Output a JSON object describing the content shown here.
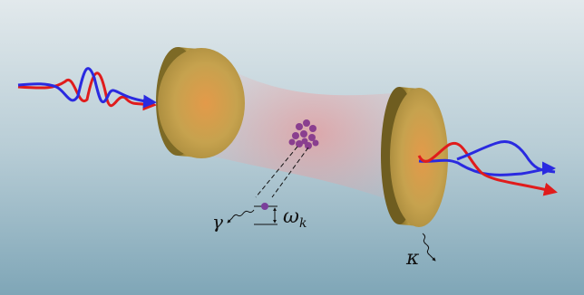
{
  "labels": {
    "gamma": "γ",
    "omega": "ω",
    "omega_subscript": "k",
    "kappa": "κ"
  }
}
